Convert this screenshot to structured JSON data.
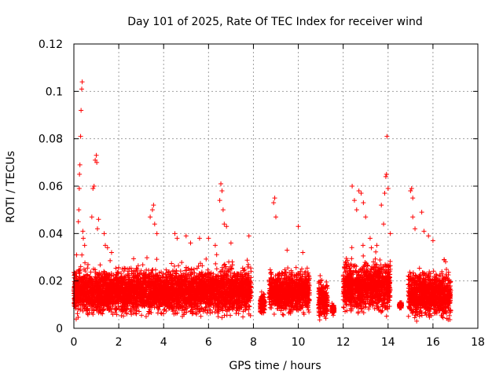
{
  "chart_data": {
    "type": "scatter",
    "title": "Day 101 of 2025, Rate Of TEC Index for receiver wind",
    "xlabel": "GPS time / hours",
    "ylabel": "ROTI / TECUs",
    "xlim": [
      0,
      18
    ],
    "ylim": [
      0,
      0.12
    ],
    "x_ticks": [
      0,
      2,
      4,
      6,
      8,
      10,
      12,
      14,
      16,
      18
    ],
    "y_ticks": [
      0,
      0.02,
      0.04,
      0.06,
      0.08,
      0.1,
      0.12
    ],
    "x_tick_labels": [
      "0",
      "2",
      "4",
      "6",
      "8",
      "10",
      "12",
      "14",
      "16",
      "18"
    ],
    "y_tick_labels": [
      "0",
      "0.02",
      "0.04",
      "0.06",
      "0.08",
      "0.1",
      "0.12"
    ],
    "grid": true,
    "marker": "+",
    "color": "#ff0000",
    "segments": [
      {
        "x_start": 0.0,
        "x_end": 7.9,
        "y_min": 0.003,
        "y_max": 0.032
      },
      {
        "x_start": 8.3,
        "x_end": 8.5,
        "y_min": 0.005,
        "y_max": 0.018
      },
      {
        "x_start": 8.7,
        "x_end": 10.5,
        "y_min": 0.004,
        "y_max": 0.03
      },
      {
        "x_start": 10.9,
        "x_end": 11.3,
        "y_min": 0.002,
        "y_max": 0.025
      },
      {
        "x_start": 11.5,
        "x_end": 11.6,
        "y_min": 0.005,
        "y_max": 0.012
      },
      {
        "x_start": 12.0,
        "x_end": 14.1,
        "y_min": 0.004,
        "y_max": 0.035
      },
      {
        "x_start": 14.5,
        "x_end": 14.6,
        "y_min": 0.008,
        "y_max": 0.012
      },
      {
        "x_start": 14.9,
        "x_end": 16.8,
        "y_min": 0.002,
        "y_max": 0.03
      }
    ],
    "points": [
      [
        0.1,
        0.022
      ],
      [
        0.12,
        0.031
      ],
      [
        0.2,
        0.045
      ],
      [
        0.22,
        0.05
      ],
      [
        0.24,
        0.059
      ],
      [
        0.25,
        0.065
      ],
      [
        0.27,
        0.069
      ],
      [
        0.3,
        0.081
      ],
      [
        0.32,
        0.092
      ],
      [
        0.35,
        0.101
      ],
      [
        0.37,
        0.104
      ],
      [
        0.4,
        0.041
      ],
      [
        0.42,
        0.038
      ],
      [
        0.48,
        0.035
      ],
      [
        0.8,
        0.047
      ],
      [
        0.85,
        0.059
      ],
      [
        0.9,
        0.06
      ],
      [
        0.95,
        0.071
      ],
      [
        1.0,
        0.073
      ],
      [
        1.02,
        0.07
      ],
      [
        1.05,
        0.042
      ],
      [
        1.1,
        0.046
      ],
      [
        1.35,
        0.04
      ],
      [
        1.4,
        0.035
      ],
      [
        1.5,
        0.034
      ],
      [
        3.4,
        0.047
      ],
      [
        3.5,
        0.05
      ],
      [
        3.55,
        0.052
      ],
      [
        3.6,
        0.044
      ],
      [
        3.7,
        0.04
      ],
      [
        4.5,
        0.04
      ],
      [
        4.6,
        0.038
      ],
      [
        5.0,
        0.039
      ],
      [
        5.2,
        0.036
      ],
      [
        5.6,
        0.038
      ],
      [
        6.0,
        0.038
      ],
      [
        6.3,
        0.035
      ],
      [
        6.5,
        0.054
      ],
      [
        6.55,
        0.061
      ],
      [
        6.6,
        0.058
      ],
      [
        6.65,
        0.05
      ],
      [
        6.7,
        0.044
      ],
      [
        6.8,
        0.043
      ],
      [
        7.0,
        0.036
      ],
      [
        7.8,
        0.039
      ],
      [
        8.9,
        0.053
      ],
      [
        8.95,
        0.055
      ],
      [
        9.0,
        0.047
      ],
      [
        9.5,
        0.033
      ],
      [
        10.0,
        0.043
      ],
      [
        10.2,
        0.032
      ],
      [
        12.4,
        0.06
      ],
      [
        12.5,
        0.054
      ],
      [
        12.6,
        0.05
      ],
      [
        12.7,
        0.058
      ],
      [
        12.8,
        0.057
      ],
      [
        12.9,
        0.053
      ],
      [
        13.0,
        0.047
      ],
      [
        13.2,
        0.038
      ],
      [
        13.5,
        0.035
      ],
      [
        13.7,
        0.052
      ],
      [
        13.8,
        0.044
      ],
      [
        13.85,
        0.057
      ],
      [
        13.9,
        0.064
      ],
      [
        13.93,
        0.065
      ],
      [
        13.95,
        0.081
      ],
      [
        14.0,
        0.059
      ],
      [
        14.1,
        0.04
      ],
      [
        15.0,
        0.058
      ],
      [
        15.05,
        0.059
      ],
      [
        15.1,
        0.055
      ],
      [
        15.1,
        0.047
      ],
      [
        15.2,
        0.042
      ],
      [
        15.5,
        0.049
      ],
      [
        15.6,
        0.041
      ],
      [
        15.8,
        0.039
      ],
      [
        16.0,
        0.037
      ],
      [
        16.5,
        0.029
      ]
    ]
  }
}
